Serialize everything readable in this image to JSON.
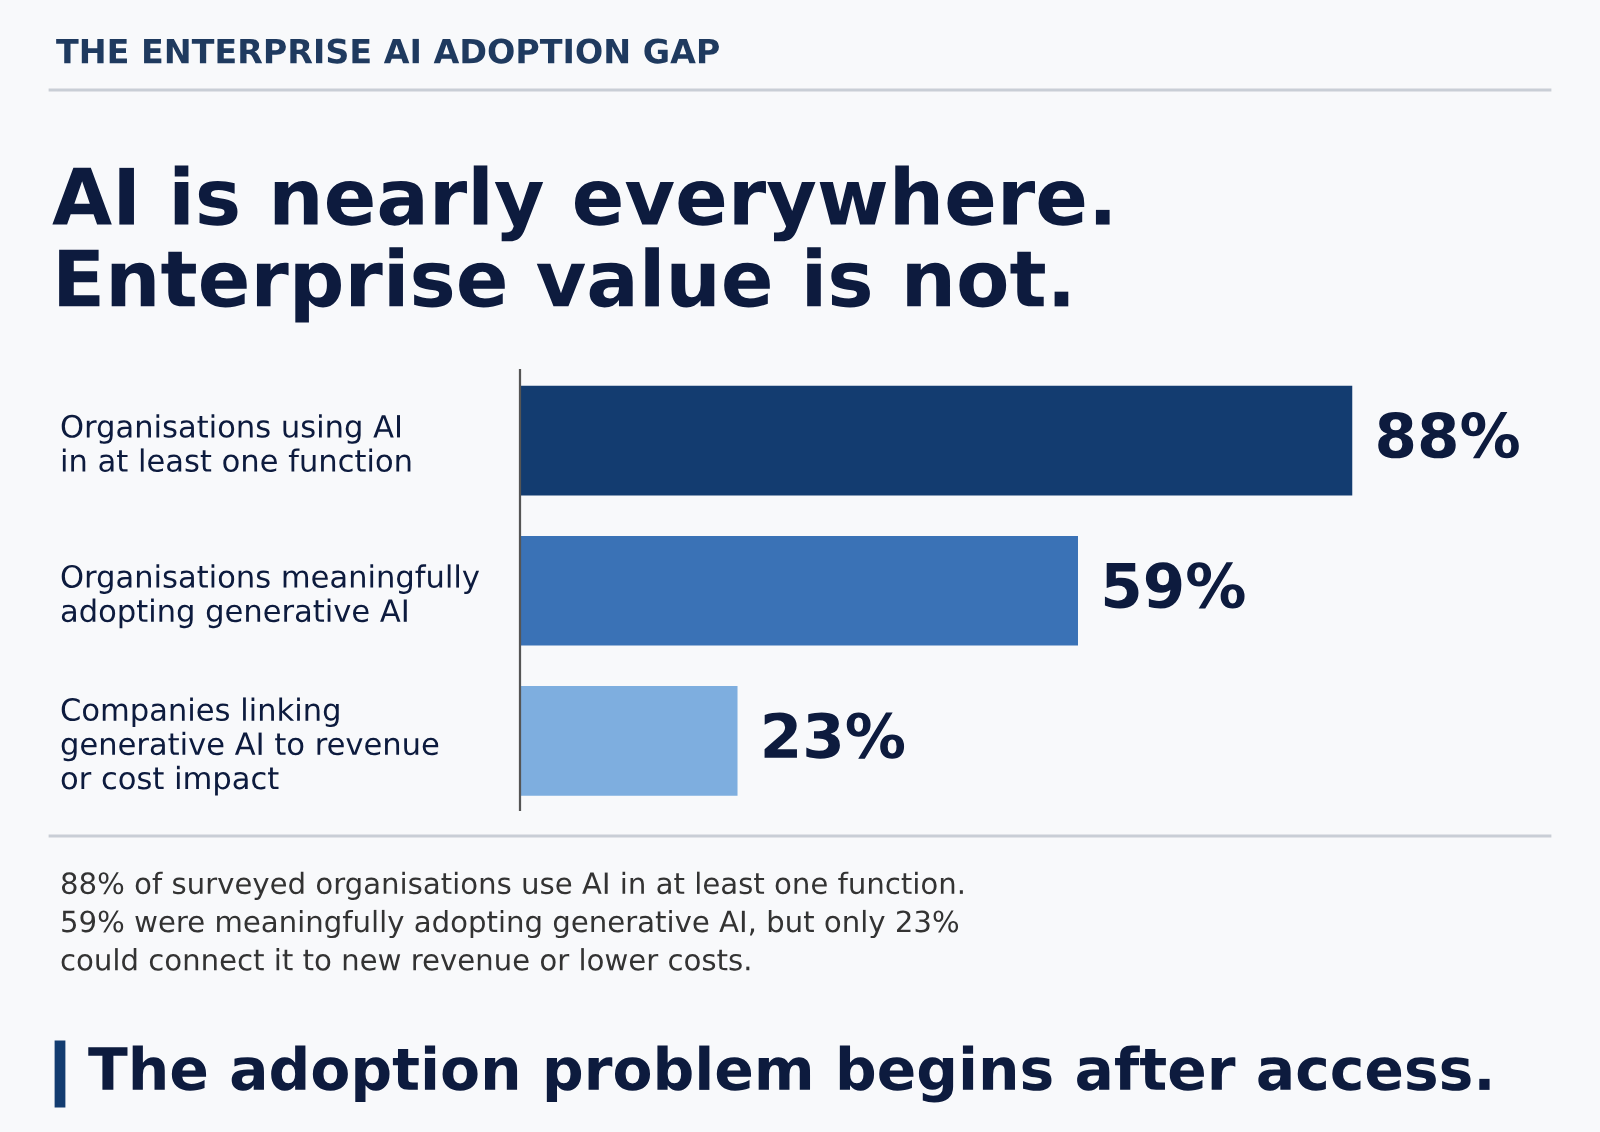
{
  "chart_data": {
    "type": "bar",
    "orientation": "horizontal",
    "subtitle": "THE ENTERPRISE AI ADOPTION GAP",
    "title": "AI is nearly everywhere.\nEnterprise value is not.",
    "categories": [
      "Organisations using AI\nin at least one function",
      "Organisations meaningfully\nadopting generative AI",
      "Companies linking\ngenerative AI to revenue\nor cost impact"
    ],
    "values": [
      88,
      59,
      23
    ],
    "colors": [
      "#133c70",
      "#3a72b6",
      "#7eaedf"
    ],
    "value_labels": [
      "88%",
      "59%",
      "23%"
    ],
    "annotations": [
      "88% of surveyed organisations use AI in at least one function.\n59% were meaningfully adopting generative AI, but only 23%\ncould connect it to new revenue or lower costs.",
      "The adoption problem begins after access."
    ],
    "grid": false,
    "legend": false
  }
}
